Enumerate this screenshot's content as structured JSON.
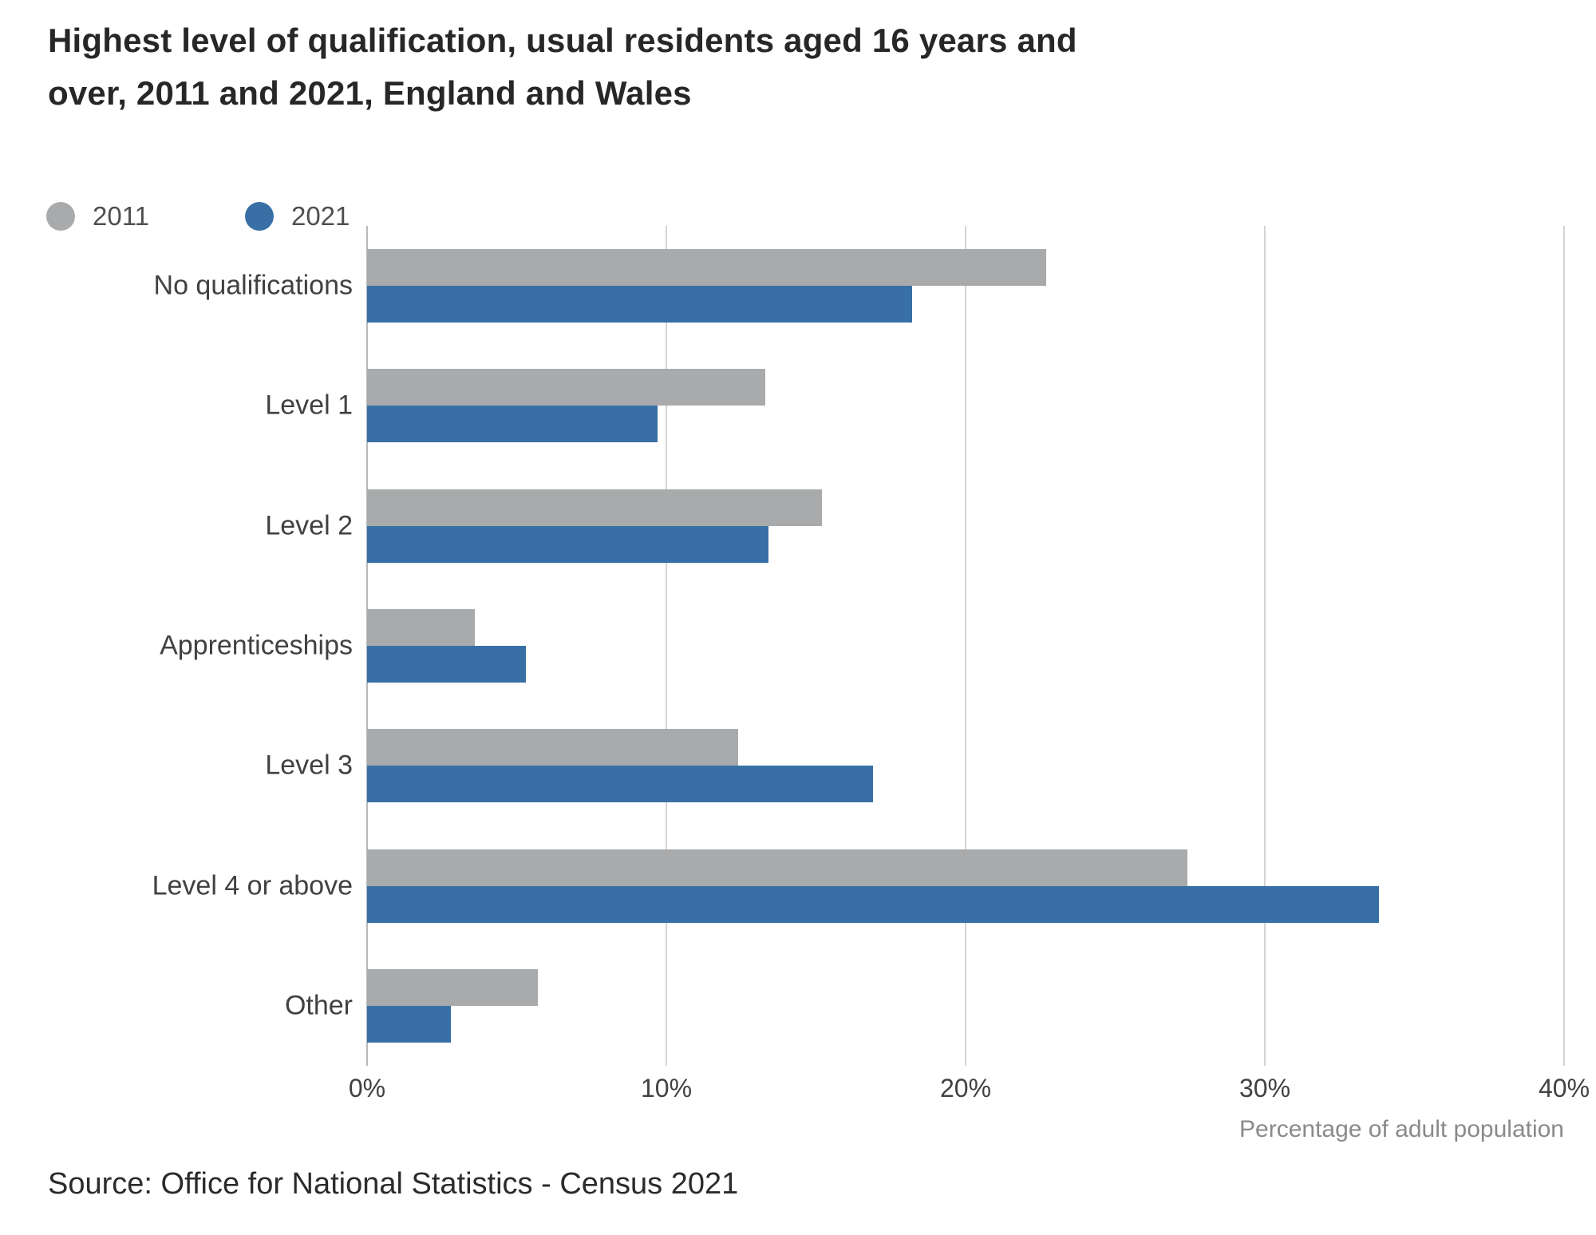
{
  "chart": {
    "title_lines": [
      "Highest level of qualification, usual residents aged 16 years and",
      "over, 2011 and 2021, England and Wales"
    ],
    "source": "Source: Office for National Statistics - Census 2021"
  },
  "chart_data": {
    "type": "bar",
    "orientation": "horizontal",
    "title": "Highest level of qualification, usual residents aged 16 years and over, 2011 and 2021, England and Wales",
    "categories": [
      "No qualifications",
      "Level 1",
      "Level 2",
      "Apprenticeships",
      "Level 3",
      "Level 4 or above",
      "Other"
    ],
    "series": [
      {
        "name": "2011",
        "color": "#a9aaab",
        "values": [
          22.7,
          13.3,
          15.2,
          3.6,
          12.4,
          27.4,
          5.7
        ]
      },
      {
        "name": "2021",
        "color": "#3870a6",
        "values": [
          18.2,
          9.7,
          13.4,
          5.3,
          16.9,
          33.8,
          2.8
        ]
      }
    ],
    "xlabel": "Percentage of adult population",
    "ylabel": "",
    "xlim": [
      0,
      40
    ],
    "x_ticks": [
      "0%",
      "10%",
      "20%",
      "30%",
      "40%"
    ],
    "grid": "vertical-gridlines",
    "legend_position": "top-left",
    "gridline_color": "#d4d4d4"
  }
}
